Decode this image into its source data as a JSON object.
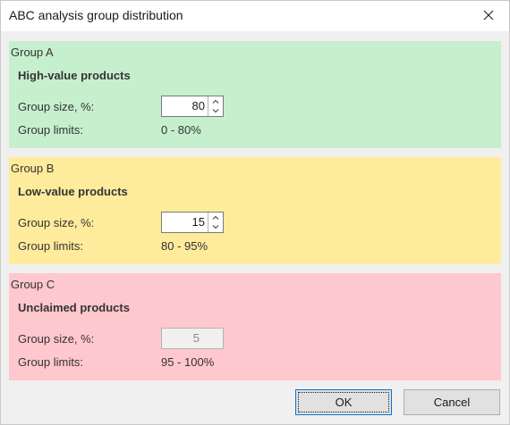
{
  "window": {
    "title": "ABC analysis group distribution"
  },
  "groups": [
    {
      "title": "Group A",
      "heading": "High-value products",
      "size_label": "Group size, %:",
      "size_value": "80",
      "limits_label": "Group limits:",
      "limits_value": "0 - 80%",
      "color": "#c6efce"
    },
    {
      "title": "Group B",
      "heading": "Low-value products",
      "size_label": "Group size, %:",
      "size_value": "15",
      "limits_label": "Group limits:",
      "limits_value": "80 - 95%",
      "color": "#ffeb9c"
    },
    {
      "title": "Group C",
      "heading": "Unclaimed products",
      "size_label": "Group size, %:",
      "size_value": "5",
      "limits_label": "Group limits:",
      "limits_value": "95 - 100%",
      "color": "#ffc7ce"
    }
  ],
  "buttons": {
    "ok_label": "OK",
    "cancel_label": "Cancel"
  },
  "icons": {
    "close": "close-icon",
    "spin_up": "chevron-up-icon",
    "spin_down": "chevron-down-icon"
  }
}
